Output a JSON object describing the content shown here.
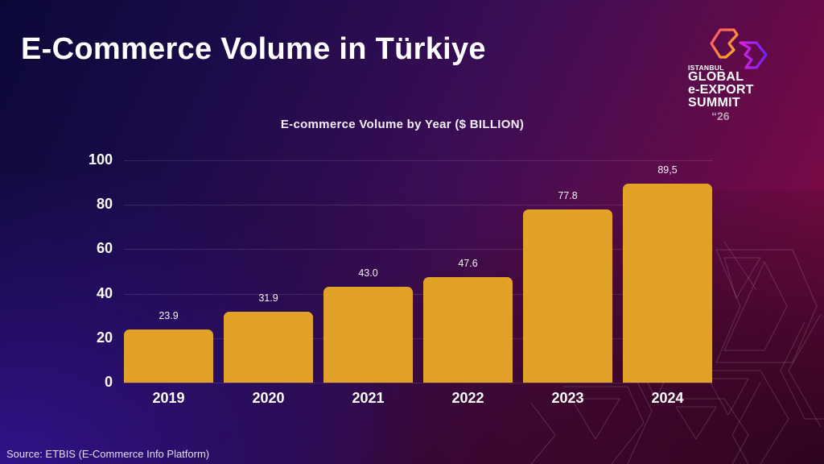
{
  "slide": {
    "title": "E-Commerce Volume in Türkiye",
    "source": "Source: ETBIS (E-Commerce Info Platform)"
  },
  "logo": {
    "line0": "ISTANBUL",
    "line1": "GLOBAL",
    "line2": "e-EXPORT",
    "line3": "SUMMIT",
    "year": "“26"
  },
  "colors": {
    "bar": "#e1a227",
    "background_top_left": "#0b0838",
    "background_top_right": "#8c0a45",
    "background_bottom_left": "#2e1288",
    "background_bottom_right": "#350626",
    "text": "#ffffff"
  },
  "chart_data": {
    "type": "bar",
    "title": "E-commerce Volume by Year ($ BILLION)",
    "xlabel": "",
    "ylabel": "",
    "categories": [
      "2019",
      "2020",
      "2021",
      "2022",
      "2023",
      "2024"
    ],
    "values": [
      23.9,
      31.9,
      43.0,
      47.6,
      77.8,
      89.5
    ],
    "value_labels": [
      "23.9",
      "31.9",
      "43.0",
      "47.6",
      "77.8",
      "89,5"
    ],
    "ylim": [
      0,
      100
    ],
    "yticks": [
      "100",
      "80",
      "60",
      "40",
      "20",
      "0"
    ],
    "grid": true,
    "legend": null
  }
}
